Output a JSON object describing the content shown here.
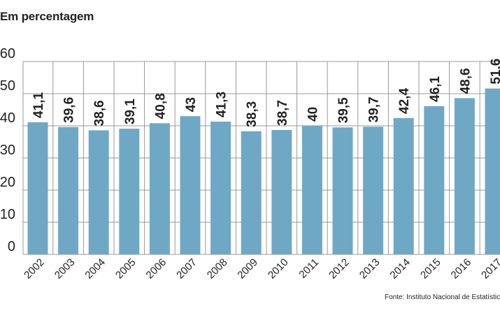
{
  "subtitle": "Em percentagem",
  "source": "Fonte: Instituto Nacional de Estatística",
  "colors": {
    "bar": "#6fa8c4",
    "grid": "#999999",
    "text": "#222222"
  },
  "chart_data": {
    "type": "bar",
    "title": "",
    "subtitle": "Em percentagem",
    "xlabel": "",
    "ylabel": "",
    "ylim": [
      0,
      60
    ],
    "yticks": [
      0,
      10,
      20,
      30,
      40,
      50,
      60
    ],
    "grid": true,
    "categories": [
      "2002",
      "2003",
      "2004",
      "2005",
      "2006",
      "2007",
      "2008",
      "2009",
      "2010",
      "2011",
      "2012",
      "2013",
      "2014",
      "2015",
      "2016",
      "2017"
    ],
    "values": [
      41.1,
      39.6,
      38.6,
      39.1,
      40.8,
      43,
      41.3,
      38.3,
      38.7,
      40,
      39.5,
      39.7,
      42.4,
      46.1,
      48.6,
      51.6
    ],
    "data_labels": [
      "41,1",
      "39,6",
      "38,6",
      "39,1",
      "40,8",
      "43",
      "41,3",
      "38,3",
      "38,7",
      "40",
      "39,5",
      "39,7",
      "42,4",
      "46,1",
      "48,6",
      "51,6"
    ]
  }
}
